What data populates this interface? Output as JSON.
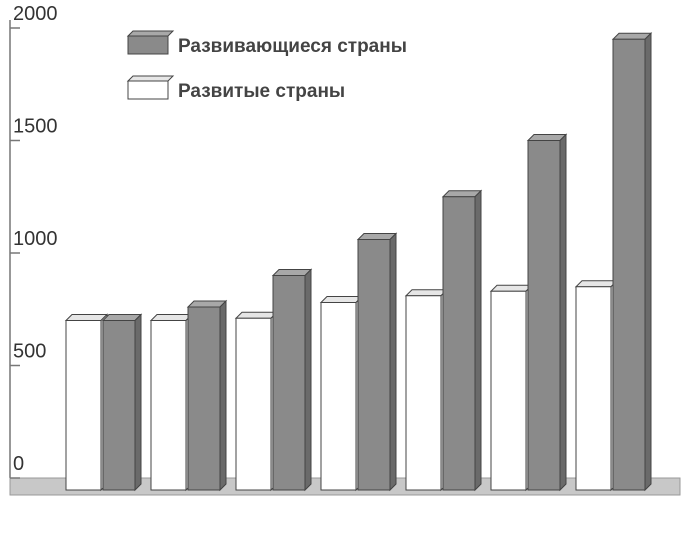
{
  "chart_data": {
    "type": "bar3d",
    "categories": [
      null,
      null,
      null,
      null,
      null,
      null,
      null
    ],
    "series": [
      {
        "name": "Развитые страны",
        "color": "#ffffff",
        "values": [
          700,
          700,
          710,
          780,
          810,
          830,
          850
        ]
      },
      {
        "name": "Развивающиеся страны",
        "color": "#8a8a8a",
        "values": [
          700,
          760,
          900,
          1060,
          1250,
          1500,
          1950
        ]
      }
    ],
    "ylim": [
      0,
      2000
    ],
    "yticks": [
      0,
      500,
      1000,
      1500,
      2000
    ]
  }
}
